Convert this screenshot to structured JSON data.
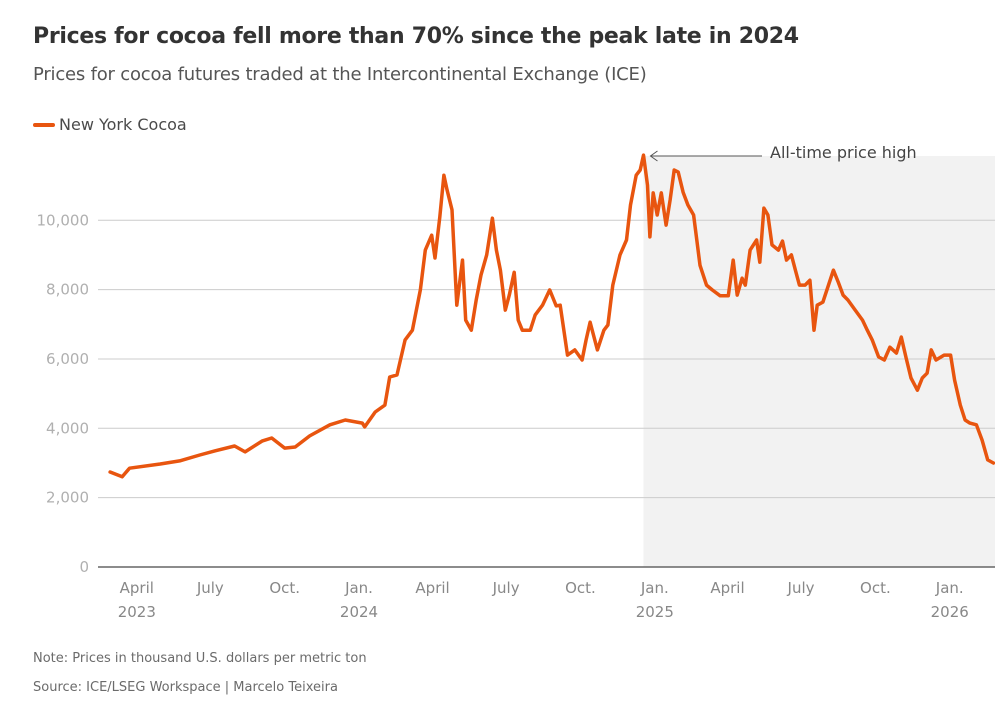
{
  "header": {
    "title": "Prices for cocoa fell more than 70% since the peak late in 2024",
    "subtitle": "Prices for cocoa futures traded at the Intercontinental Exchange (ICE)"
  },
  "legend": {
    "label": "New York Cocoa",
    "color": "#e8550f"
  },
  "footer": {
    "note": "Note: Prices in thousand U.S. dollars per metric ton",
    "source": "Source: ICE/LSEG Workspace | Marcelo Teixeira"
  },
  "chart_data": {
    "type": "line",
    "title": "Prices for cocoa fell more than 70% since the peak late in 2024",
    "subtitle": "Prices for cocoa futures traded at the Intercontinental Exchange (ICE)",
    "xlabel": "",
    "ylabel": "",
    "grid": true,
    "legend_position": "top-left",
    "xlim": [
      "2023-02-12",
      "2026-02-26"
    ],
    "ylim": [
      0,
      12000
    ],
    "yticks": [
      {
        "value": 0,
        "label": "0"
      },
      {
        "value": 2000,
        "label": "2,000"
      },
      {
        "value": 4000,
        "label": "4,000"
      },
      {
        "value": 6000,
        "label": "6,000"
      },
      {
        "value": 8000,
        "label": "8,000"
      },
      {
        "value": 10000,
        "label": "10,000"
      }
    ],
    "xticks": [
      {
        "date": "2023-04-01",
        "label": "April",
        "year": "2023"
      },
      {
        "date": "2023-07-01",
        "label": "July",
        "year": ""
      },
      {
        "date": "2023-10-01",
        "label": "Oct.",
        "year": ""
      },
      {
        "date": "2024-01-01",
        "label": "Jan.",
        "year": "2024"
      },
      {
        "date": "2024-04-01",
        "label": "April",
        "year": ""
      },
      {
        "date": "2024-07-01",
        "label": "July",
        "year": ""
      },
      {
        "date": "2024-10-01",
        "label": "Oct.",
        "year": ""
      },
      {
        "date": "2025-01-01",
        "label": "Jan.",
        "year": "2025"
      },
      {
        "date": "2025-04-01",
        "label": "April",
        "year": ""
      },
      {
        "date": "2025-07-01",
        "label": "July",
        "year": ""
      },
      {
        "date": "2025-10-01",
        "label": "Oct.",
        "year": ""
      },
      {
        "date": "2026-01-01",
        "label": "Jan.",
        "year": "2026"
      }
    ],
    "shaded_region": {
      "start": "2024-12-18",
      "end": "2026-02-26",
      "color": "#f2f2f2"
    },
    "annotations": [
      {
        "text": "All-time price high",
        "date": "2024-12-18",
        "value": 11880
      }
    ],
    "series": [
      {
        "name": "New York Cocoa",
        "color": "#e8550f",
        "points": [
          [
            "2023-02-27",
            2740
          ],
          [
            "2023-03-14",
            2600
          ],
          [
            "2023-03-23",
            2850
          ],
          [
            "2023-04-30",
            2970
          ],
          [
            "2023-05-24",
            3060
          ],
          [
            "2023-06-18",
            3230
          ],
          [
            "2023-07-07",
            3350
          ],
          [
            "2023-07-31",
            3490
          ],
          [
            "2023-08-13",
            3320
          ],
          [
            "2023-09-03",
            3630
          ],
          [
            "2023-09-15",
            3720
          ],
          [
            "2023-10-01",
            3430
          ],
          [
            "2023-10-14",
            3460
          ],
          [
            "2023-11-01",
            3780
          ],
          [
            "2023-11-26",
            4100
          ],
          [
            "2023-12-15",
            4240
          ],
          [
            "2024-01-05",
            4150
          ],
          [
            "2024-01-08",
            4040
          ],
          [
            "2024-01-21",
            4470
          ],
          [
            "2024-02-02",
            4670
          ],
          [
            "2024-02-08",
            5480
          ],
          [
            "2024-02-17",
            5540
          ],
          [
            "2024-02-27",
            6550
          ],
          [
            "2024-03-07",
            6830
          ],
          [
            "2024-03-17",
            8000
          ],
          [
            "2024-03-23",
            9140
          ],
          [
            "2024-03-31",
            9570
          ],
          [
            "2024-04-04",
            8910
          ],
          [
            "2024-04-10",
            10090
          ],
          [
            "2024-04-15",
            11300
          ],
          [
            "2024-04-19",
            10870
          ],
          [
            "2024-04-25",
            10300
          ],
          [
            "2024-05-01",
            7550
          ],
          [
            "2024-05-08",
            8850
          ],
          [
            "2024-05-12",
            7120
          ],
          [
            "2024-05-19",
            6830
          ],
          [
            "2024-05-25",
            7700
          ],
          [
            "2024-05-31",
            8420
          ],
          [
            "2024-06-07",
            9000
          ],
          [
            "2024-06-14",
            10060
          ],
          [
            "2024-06-19",
            9140
          ],
          [
            "2024-06-24",
            8560
          ],
          [
            "2024-06-30",
            7410
          ],
          [
            "2024-07-05",
            7840
          ],
          [
            "2024-07-11",
            8500
          ],
          [
            "2024-07-16",
            7120
          ],
          [
            "2024-07-21",
            6830
          ],
          [
            "2024-07-31",
            6830
          ],
          [
            "2024-08-06",
            7270
          ],
          [
            "2024-08-15",
            7550
          ],
          [
            "2024-08-24",
            7990
          ],
          [
            "2024-09-01",
            7530
          ],
          [
            "2024-09-06",
            7550
          ],
          [
            "2024-09-15",
            6110
          ],
          [
            "2024-09-24",
            6260
          ],
          [
            "2024-10-03",
            5970
          ],
          [
            "2024-10-08",
            6550
          ],
          [
            "2024-10-13",
            7060
          ],
          [
            "2024-10-22",
            6260
          ],
          [
            "2024-10-30",
            6830
          ],
          [
            "2024-11-04",
            6980
          ],
          [
            "2024-11-10",
            8130
          ],
          [
            "2024-11-19",
            9000
          ],
          [
            "2024-11-27",
            9430
          ],
          [
            "2024-12-02",
            10440
          ],
          [
            "2024-12-09",
            11300
          ],
          [
            "2024-12-14",
            11450
          ],
          [
            "2024-12-18",
            11880
          ],
          [
            "2024-12-23",
            11010
          ],
          [
            "2024-12-26",
            9520
          ],
          [
            "2024-12-30",
            10790
          ],
          [
            "2025-01-04",
            10150
          ],
          [
            "2025-01-09",
            10790
          ],
          [
            "2025-01-15",
            9860
          ],
          [
            "2025-01-20",
            10580
          ],
          [
            "2025-01-25",
            11450
          ],
          [
            "2025-01-30",
            11390
          ],
          [
            "2025-02-05",
            10810
          ],
          [
            "2025-02-11",
            10440
          ],
          [
            "2025-02-18",
            10150
          ],
          [
            "2025-02-22",
            9430
          ],
          [
            "2025-02-26",
            8700
          ],
          [
            "2025-03-06",
            8130
          ],
          [
            "2025-03-13",
            7990
          ],
          [
            "2025-03-23",
            7820
          ],
          [
            "2025-04-02",
            7820
          ],
          [
            "2025-04-08",
            8850
          ],
          [
            "2025-04-13",
            7840
          ],
          [
            "2025-04-19",
            8330
          ],
          [
            "2025-04-23",
            8130
          ],
          [
            "2025-04-29",
            9140
          ],
          [
            "2025-05-07",
            9430
          ],
          [
            "2025-05-11",
            8790
          ],
          [
            "2025-05-16",
            10350
          ],
          [
            "2025-05-21",
            10150
          ],
          [
            "2025-05-26",
            9290
          ],
          [
            "2025-06-03",
            9140
          ],
          [
            "2025-06-08",
            9400
          ],
          [
            "2025-06-13",
            8850
          ],
          [
            "2025-06-19",
            9000
          ],
          [
            "2025-06-24",
            8560
          ],
          [
            "2025-06-29",
            8130
          ],
          [
            "2025-07-06",
            8130
          ],
          [
            "2025-07-12",
            8270
          ],
          [
            "2025-07-17",
            6830
          ],
          [
            "2025-07-21",
            7550
          ],
          [
            "2025-07-28",
            7640
          ],
          [
            "2025-08-04",
            8130
          ],
          [
            "2025-08-10",
            8560
          ],
          [
            "2025-08-16",
            8220
          ],
          [
            "2025-08-22",
            7840
          ],
          [
            "2025-08-28",
            7700
          ],
          [
            "2025-09-06",
            7410
          ],
          [
            "2025-09-15",
            7120
          ],
          [
            "2025-09-21",
            6830
          ],
          [
            "2025-09-27",
            6550
          ],
          [
            "2025-10-05",
            6060
          ],
          [
            "2025-10-12",
            5970
          ],
          [
            "2025-10-19",
            6340
          ],
          [
            "2025-10-27",
            6170
          ],
          [
            "2025-11-02",
            6630
          ],
          [
            "2025-11-08",
            6030
          ],
          [
            "2025-11-14",
            5450
          ],
          [
            "2025-11-22",
            5100
          ],
          [
            "2025-11-28",
            5450
          ],
          [
            "2025-12-04",
            5590
          ],
          [
            "2025-12-09",
            6260
          ],
          [
            "2025-12-15",
            5970
          ],
          [
            "2025-12-25",
            6110
          ],
          [
            "2026-01-02",
            6110
          ],
          [
            "2026-01-07",
            5390
          ],
          [
            "2026-01-14",
            4670
          ],
          [
            "2026-01-20",
            4240
          ],
          [
            "2026-01-26",
            4150
          ],
          [
            "2026-02-03",
            4100
          ],
          [
            "2026-02-10",
            3660
          ],
          [
            "2026-02-17",
            3090
          ],
          [
            "2026-02-24",
            3000
          ]
        ]
      }
    ]
  }
}
